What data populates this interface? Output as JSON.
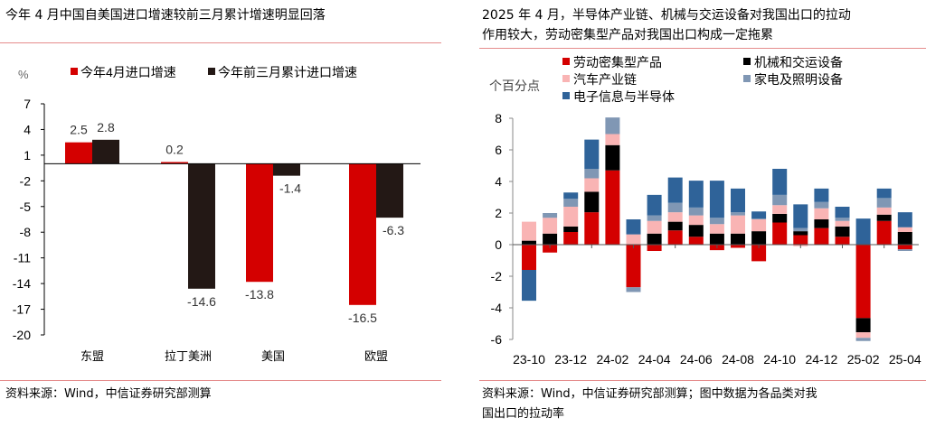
{
  "left": {
    "title": "今年 4 月中国自美国进口增速较前三月累计增速明显回落",
    "source": "资料来源：Wind，中信证券研究部测算"
  },
  "right": {
    "title_line1": "2025 年 4 月，半导体产业链、机械与交运设备对我国出口的拉动",
    "title_line2": "作用较大，劳动密集型产品对我国出口构成一定拖累",
    "source_line1": "资料来源：Wind，中信证券研究部测算；图中数据为各品类对我",
    "source_line2": "国出口的拉动率"
  },
  "chart_data": [
    {
      "type": "bar",
      "ylabel": "%",
      "ylim": [
        -20,
        7
      ],
      "yticks": [
        7,
        4,
        1,
        -2,
        -5,
        -8,
        -11,
        -14,
        -17,
        -20
      ],
      "categories": [
        "东盟",
        "拉丁美洲",
        "美国",
        "欧盟"
      ],
      "series": [
        {
          "name": "今年4月进口增速",
          "color": "#d40000",
          "values": [
            2.5,
            0.2,
            -13.8,
            -16.5
          ],
          "labels": [
            "2.5",
            "0.2",
            "-13.8",
            "-16.5"
          ]
        },
        {
          "name": "今年前三月累计进口增速",
          "color": "#231815",
          "values": [
            2.8,
            -14.6,
            -1.4,
            -6.3
          ],
          "labels": [
            "2.8",
            "-14.6",
            "-1.4",
            "-6.3"
          ]
        }
      ],
      "legend": "top"
    },
    {
      "type": "bar",
      "stacked": true,
      "ylabel": "个百分点",
      "ylim": [
        -6,
        8
      ],
      "yticks": [
        8,
        6,
        4,
        2,
        0,
        -2,
        -4,
        -6
      ],
      "x": [
        "23-10",
        "23-11",
        "23-12",
        "24-01",
        "24-02",
        "24-03",
        "24-04",
        "24-05",
        "24-06",
        "24-07",
        "24-08",
        "24-09",
        "24-10",
        "24-11",
        "24-12",
        "25-01",
        "25-02",
        "25-03",
        "25-04"
      ],
      "xtick_labels": [
        "23-10",
        "23-12",
        "24-02",
        "24-04",
        "24-06",
        "24-08",
        "24-10",
        "24-12",
        "25-02",
        "25-04"
      ],
      "series": [
        {
          "name": "劳动密集型产品",
          "color": "#d40000",
          "values": [
            -1.6,
            -0.5,
            0.8,
            2.05,
            4.7,
            -2.7,
            -0.4,
            0.9,
            0.5,
            -0.35,
            -0.2,
            -1.05,
            1.4,
            0.6,
            1.05,
            0.5,
            -4.65,
            1.5,
            -0.3
          ]
        },
        {
          "name": "机械和交运设备",
          "color": "#000000",
          "values": [
            0.25,
            0.7,
            0.35,
            1.3,
            1.6,
            0,
            0.7,
            0.55,
            0.75,
            0.7,
            0.7,
            0.85,
            0.55,
            0.25,
            0.55,
            0.65,
            -0.9,
            0.4,
            0.8
          ]
        },
        {
          "name": "汽车产业链",
          "color": "#f9b4b4",
          "values": [
            1.2,
            1.0,
            1.25,
            0.85,
            0.7,
            0.65,
            0.8,
            0.6,
            0.6,
            0.6,
            1.15,
            0.75,
            0.55,
            -0.1,
            0.7,
            0.35,
            -0.35,
            0.45,
            0.3
          ]
        },
        {
          "name": "家电及照明设备",
          "color": "#8097b4",
          "values": [
            0,
            0.3,
            0.5,
            0.6,
            1.05,
            -0.3,
            0.35,
            0.6,
            0.5,
            0.4,
            0.2,
            0.05,
            0.65,
            0.2,
            0.4,
            0.2,
            -0.2,
            0.6,
            -0.1
          ]
        },
        {
          "name": "电子信息与半导体",
          "color": "#2f6399",
          "values": [
            -1.95,
            0,
            0.4,
            1.85,
            0,
            0.95,
            1.3,
            1.6,
            1.7,
            2.35,
            1.5,
            0.45,
            1.65,
            1.5,
            0.85,
            0.7,
            1.65,
            0.6,
            0.95
          ]
        }
      ],
      "legend": "top"
    }
  ]
}
